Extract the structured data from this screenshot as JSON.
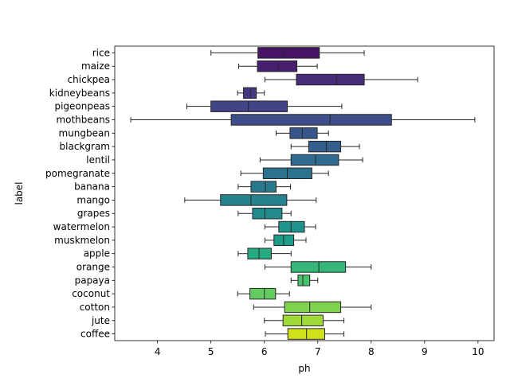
{
  "chart_data": {
    "type": "box",
    "orientation": "horizontal",
    "title": "",
    "xlabel": "ph",
    "ylabel": "label",
    "xlim": [
      3.2,
      10.3
    ],
    "xticks": [
      4,
      5,
      6,
      7,
      8,
      9,
      10
    ],
    "grid": false,
    "legend": "none",
    "categories": [
      "rice",
      "maize",
      "chickpea",
      "kidneybeans",
      "pigeonpeas",
      "mothbeans",
      "mungbean",
      "blackgram",
      "lentil",
      "pomegranate",
      "banana",
      "mango",
      "grapes",
      "watermelon",
      "muskmelon",
      "apple",
      "orange",
      "papaya",
      "coconut",
      "cotton",
      "jute",
      "coffee"
    ],
    "boxes": [
      {
        "label": "rice",
        "whisker_low": 5.0,
        "q1": 5.88,
        "median": 6.37,
        "q3": 7.03,
        "whisker_high": 7.87
      },
      {
        "label": "maize",
        "whisker_low": 5.52,
        "q1": 5.87,
        "median": 6.26,
        "q3": 6.61,
        "whisker_high": 6.99
      },
      {
        "label": "chickpea",
        "whisker_low": 6.01,
        "q1": 6.6,
        "median": 7.35,
        "q3": 7.87,
        "whisker_high": 8.87
      },
      {
        "label": "kidneybeans",
        "whisker_low": 5.5,
        "q1": 5.61,
        "median": 5.74,
        "q3": 5.85,
        "whisker_high": 6.0
      },
      {
        "label": "pigeonpeas",
        "whisker_low": 4.55,
        "q1": 5.0,
        "median": 5.7,
        "q3": 6.43,
        "whisker_high": 7.45
      },
      {
        "label": "mothbeans",
        "whisker_low": 3.5,
        "q1": 5.38,
        "median": 7.23,
        "q3": 8.38,
        "whisker_high": 9.94
      },
      {
        "label": "mungbean",
        "whisker_low": 6.22,
        "q1": 6.48,
        "median": 6.71,
        "q3": 6.99,
        "whisker_high": 7.2
      },
      {
        "label": "blackgram",
        "whisker_low": 6.5,
        "q1": 6.83,
        "median": 7.16,
        "q3": 7.43,
        "whisker_high": 7.78
      },
      {
        "label": "lentil",
        "whisker_low": 5.92,
        "q1": 6.5,
        "median": 6.96,
        "q3": 7.39,
        "whisker_high": 7.84
      },
      {
        "label": "pomegranate",
        "whisker_low": 5.56,
        "q1": 5.98,
        "median": 6.43,
        "q3": 6.89,
        "whisker_high": 7.2
      },
      {
        "label": "banana",
        "whisker_low": 5.51,
        "q1": 5.75,
        "median": 6.02,
        "q3": 6.22,
        "whisker_high": 6.49
      },
      {
        "label": "mango",
        "whisker_low": 4.51,
        "q1": 5.18,
        "median": 5.75,
        "q3": 6.42,
        "whisker_high": 6.97
      },
      {
        "label": "grapes",
        "whisker_low": 5.51,
        "q1": 5.78,
        "median": 6.01,
        "q3": 6.33,
        "whisker_high": 6.5
      },
      {
        "label": "watermelon",
        "whisker_low": 6.01,
        "q1": 6.27,
        "median": 6.5,
        "q3": 6.75,
        "whisker_high": 6.96
      },
      {
        "label": "muskmelon",
        "whisker_low": 6.01,
        "q1": 6.18,
        "median": 6.36,
        "q3": 6.55,
        "whisker_high": 6.78
      },
      {
        "label": "apple",
        "whisker_low": 5.51,
        "q1": 5.69,
        "median": 5.9,
        "q3": 6.13,
        "whisker_high": 6.5
      },
      {
        "label": "orange",
        "whisker_low": 6.01,
        "q1": 6.5,
        "median": 7.02,
        "q3": 7.52,
        "whisker_high": 8.0
      },
      {
        "label": "papaya",
        "whisker_low": 6.5,
        "q1": 6.63,
        "median": 6.72,
        "q3": 6.85,
        "whisker_high": 7.0
      },
      {
        "label": "coconut",
        "whisker_low": 5.5,
        "q1": 5.73,
        "median": 6.0,
        "q3": 6.21,
        "whisker_high": 6.47
      },
      {
        "label": "cotton",
        "whisker_low": 5.8,
        "q1": 6.38,
        "median": 6.85,
        "q3": 7.43,
        "whisker_high": 8.0
      },
      {
        "label": "jute",
        "whisker_low": 6.0,
        "q1": 6.35,
        "median": 6.7,
        "q3": 7.1,
        "whisker_high": 7.49
      },
      {
        "label": "coffee",
        "whisker_low": 6.02,
        "q1": 6.44,
        "median": 6.79,
        "q3": 7.13,
        "whisker_high": 7.49
      }
    ],
    "colors": [
      "#471365",
      "#481f70",
      "#472c7a",
      "#443983",
      "#414487",
      "#3d4e8a",
      "#39568c",
      "#345f8d",
      "#30698e",
      "#2c728e",
      "#29798e",
      "#26828e",
      "#228b8d",
      "#1f948c",
      "#1e9c89",
      "#25ab82",
      "#35b779",
      "#4ac16d",
      "#63cb5f",
      "#7fd34e",
      "#a0da39",
      "#d0e11c"
    ]
  }
}
